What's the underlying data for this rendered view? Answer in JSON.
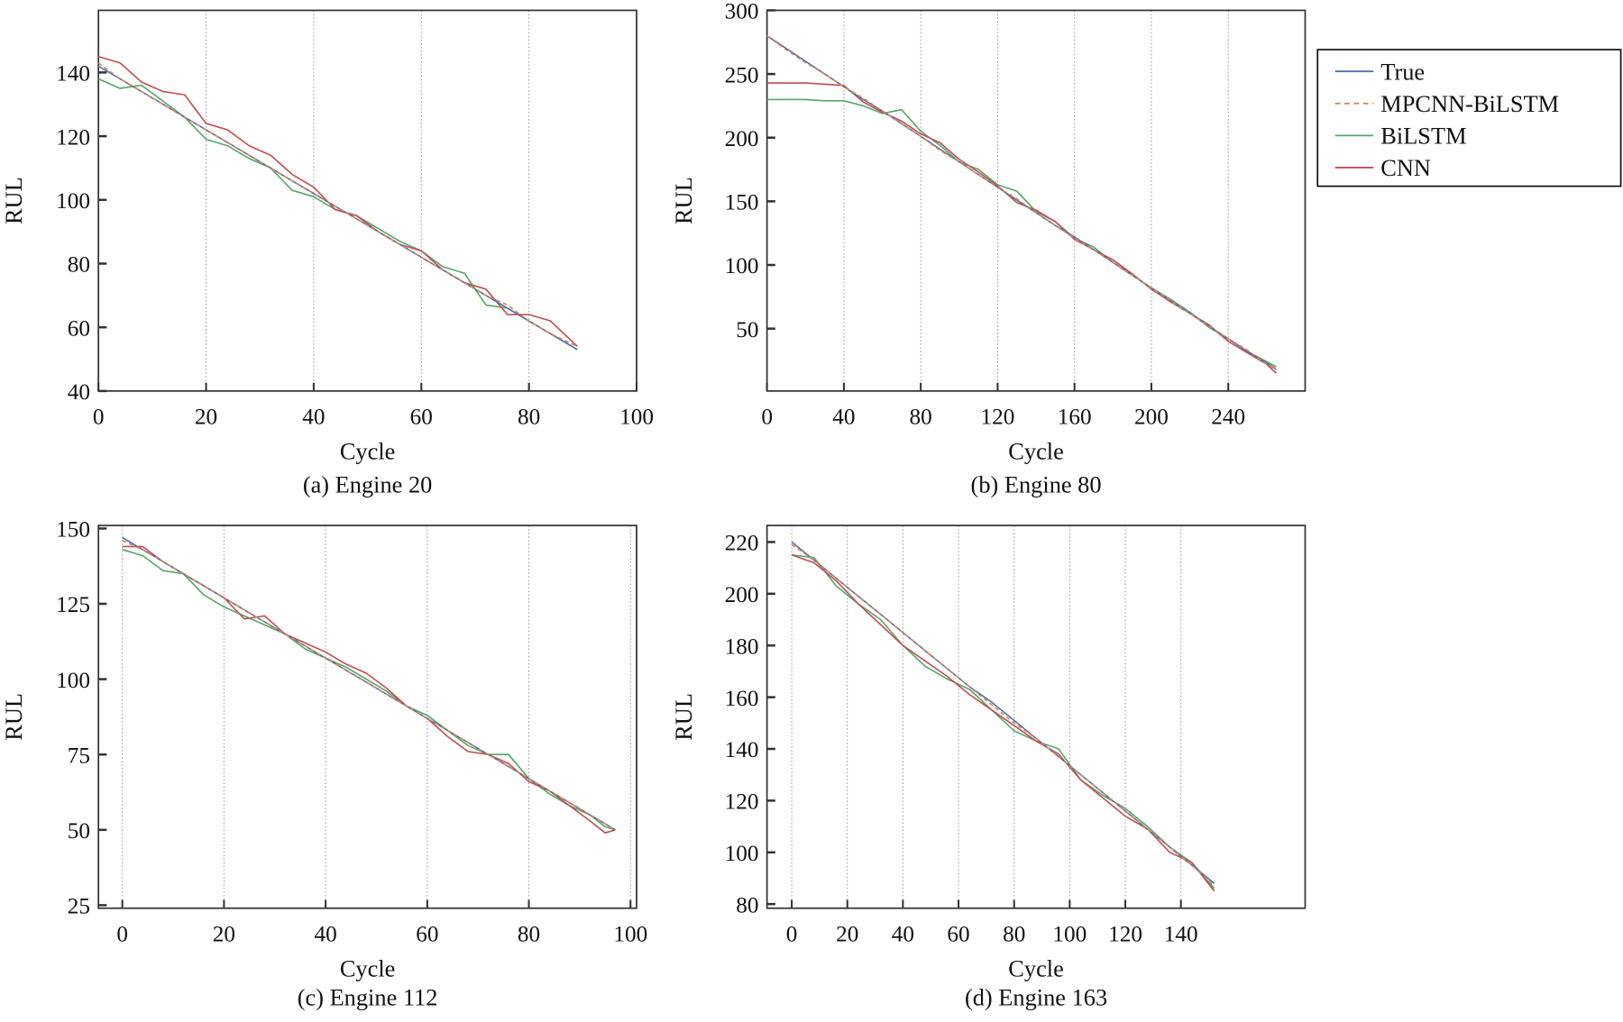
{
  "legend": {
    "entries": [
      {
        "label": "True",
        "color": "#4c72b0",
        "dash": false
      },
      {
        "label": "MPCNN-BiLSTM",
        "color": "#dd8452",
        "dash": true
      },
      {
        "label": "BiLSTM",
        "color": "#55a868",
        "dash": false
      },
      {
        "label": "CNN",
        "color": "#c44e52",
        "dash": false
      }
    ]
  },
  "chart_data": [
    {
      "type": "line",
      "caption": "(a) Engine 20",
      "xlabel": "Cycle",
      "ylabel": "RUL",
      "xlim": [
        0,
        100
      ],
      "ylim": [
        40,
        159.5
      ],
      "xticks": [
        0,
        20,
        40,
        60,
        80,
        100
      ],
      "yticks": [
        40,
        60,
        80,
        100,
        120,
        140
      ],
      "grid": "vertical-dotted",
      "x": [
        0,
        4,
        8,
        12,
        16,
        20,
        24,
        28,
        32,
        36,
        40,
        44,
        48,
        52,
        56,
        60,
        64,
        68,
        72,
        76,
        80,
        84,
        89
      ],
      "series": [
        {
          "name": "True",
          "values": [
            142,
            138,
            134,
            130,
            126,
            122,
            118,
            114,
            110,
            106,
            102,
            98,
            94,
            90,
            86,
            82,
            78,
            74,
            70,
            66,
            62,
            58,
            53
          ]
        },
        {
          "name": "MPCNN-BiLSTM",
          "values": [
            143,
            138,
            134,
            130,
            126,
            122,
            118,
            114,
            110,
            106,
            102,
            98,
            94,
            90,
            86,
            82,
            78,
            74,
            70,
            67,
            62,
            58,
            54
          ]
        },
        {
          "name": "BiLSTM",
          "values": [
            138,
            135,
            136,
            131,
            126,
            119,
            117,
            113,
            110,
            103,
            101,
            97,
            95,
            91,
            87,
            84,
            79,
            77,
            67,
            66,
            62,
            58,
            53
          ]
        },
        {
          "name": "CNN",
          "values": [
            145,
            143,
            137,
            134,
            133,
            124,
            122,
            117,
            114,
            108,
            104,
            97,
            95,
            90,
            86,
            84,
            78,
            74,
            72,
            64,
            64,
            62,
            54
          ]
        }
      ]
    },
    {
      "type": "line",
      "caption": "(b) Engine 80",
      "xlabel": "Cycle",
      "ylabel": "RUL",
      "xlim": [
        0,
        280
      ],
      "ylim": [
        1,
        300
      ],
      "xticks": [
        0,
        40,
        80,
        120,
        160,
        200,
        240
      ],
      "yticks": [
        50,
        100,
        150,
        200,
        250,
        300
      ],
      "grid": "vertical-dotted",
      "x": [
        0,
        10,
        20,
        30,
        40,
        50,
        60,
        70,
        80,
        90,
        100,
        110,
        120,
        130,
        140,
        150,
        160,
        170,
        180,
        190,
        200,
        210,
        220,
        230,
        240,
        250,
        260,
        265
      ],
      "series": [
        {
          "name": "True",
          "values": [
            280,
            270,
            260,
            250,
            240,
            230,
            221,
            211,
            201,
            191,
            181,
            171,
            161,
            151,
            141,
            131,
            122,
            112,
            102,
            92,
            82,
            72,
            62,
            52,
            42,
            32,
            23,
            18
          ]
        },
        {
          "name": "MPCNN-BiLSTM",
          "values": [
            280,
            269,
            259,
            250,
            240,
            231,
            221,
            211,
            201,
            190,
            181,
            171,
            161,
            152,
            141,
            131,
            121,
            112,
            102,
            92,
            82,
            72,
            62,
            52,
            42,
            33,
            22,
            18
          ]
        },
        {
          "name": "BiLSTM",
          "values": [
            230,
            230,
            230,
            229,
            229,
            225,
            219,
            222,
            205,
            194,
            181,
            175,
            163,
            158,
            142,
            134,
            121,
            114,
            102,
            92,
            82,
            73,
            63,
            51,
            42,
            32,
            24,
            20
          ]
        },
        {
          "name": "CNN",
          "values": [
            243,
            243,
            243,
            242,
            241,
            228,
            220,
            213,
            203,
            196,
            183,
            173,
            162,
            149,
            143,
            134,
            120,
            112,
            104,
            93,
            81,
            71,
            62,
            53,
            40,
            31,
            22,
            15
          ]
        }
      ]
    },
    {
      "type": "line",
      "caption": "(c) Engine 112",
      "xlabel": "Cycle",
      "ylabel": "RUL",
      "xlim": [
        -4.7,
        101.2
      ],
      "ylim": [
        24,
        151
      ],
      "xticks": [
        0,
        20,
        40,
        60,
        80,
        100
      ],
      "yticks": [
        25,
        50,
        75,
        100,
        125,
        150
      ],
      "grid": "vertical-dotted",
      "x": [
        0,
        4,
        8,
        12,
        16,
        20,
        24,
        28,
        32,
        36,
        40,
        44,
        48,
        52,
        56,
        60,
        64,
        68,
        72,
        76,
        80,
        84,
        88,
        92,
        95,
        97
      ],
      "series": [
        {
          "name": "True",
          "values": [
            147,
            143,
            139,
            135,
            131,
            127,
            123,
            119,
            115,
            111,
            107,
            103,
            99,
            95,
            91,
            87,
            83,
            79,
            75,
            71,
            67,
            63,
            59,
            55,
            52,
            50
          ]
        },
        {
          "name": "MPCNN-BiLSTM",
          "values": [
            146,
            143,
            139,
            135,
            131,
            127,
            123,
            119,
            115,
            111,
            107,
            103,
            99,
            95,
            91,
            87,
            83,
            79,
            75,
            71,
            67,
            63,
            59,
            55,
            52,
            50
          ]
        },
        {
          "name": "BiLSTM",
          "values": [
            143,
            141,
            136,
            135,
            128,
            124,
            121,
            118,
            115,
            110,
            107,
            104,
            100,
            96,
            91,
            88,
            83,
            78,
            75,
            75,
            67,
            62,
            58,
            55,
            51,
            50
          ]
        },
        {
          "name": "CNN",
          "values": [
            144,
            144,
            139,
            135,
            131,
            127,
            120,
            121,
            115,
            112,
            109,
            105,
            102,
            97,
            91,
            87,
            81,
            76,
            75,
            72,
            66,
            63,
            58,
            53,
            49,
            50
          ]
        }
      ]
    },
    {
      "type": "line",
      "caption": "(d) Engine 163",
      "xlabel": "Cycle",
      "ylabel": "RUL",
      "xlim": [
        -8.9,
        184.7
      ],
      "ylim": [
        78.4,
        226.4
      ],
      "xticks": [
        0,
        20,
        40,
        60,
        80,
        100,
        120,
        140
      ],
      "yticks": [
        80,
        100,
        120,
        140,
        160,
        180,
        200,
        220
      ],
      "grid": "vertical-dotted",
      "x": [
        0,
        8,
        16,
        24,
        32,
        40,
        48,
        56,
        64,
        72,
        80,
        88,
        96,
        104,
        112,
        120,
        128,
        136,
        144,
        152
      ],
      "series": [
        {
          "name": "True",
          "values": [
            220,
            213,
            206,
            199,
            192,
            185,
            178,
            171,
            164,
            158,
            151,
            144,
            137,
            130,
            123,
            116,
            109,
            102,
            95,
            88
          ]
        },
        {
          "name": "MPCNN-BiLSTM",
          "values": [
            219,
            213,
            206,
            199,
            192,
            185,
            178,
            171,
            164,
            157,
            150,
            144,
            137,
            130,
            123,
            116,
            109,
            102,
            95,
            87
          ]
        },
        {
          "name": "BiLSTM",
          "values": [
            215,
            214,
            203,
            196,
            190,
            180,
            172,
            167,
            163,
            155,
            147,
            143,
            140,
            128,
            122,
            117,
            110,
            102,
            96,
            86
          ]
        },
        {
          "name": "CNN",
          "values": [
            215,
            212,
            205,
            196,
            188,
            180,
            174,
            168,
            161,
            155,
            149,
            143,
            138,
            128,
            121,
            114,
            109,
            100,
            96,
            85
          ]
        }
      ]
    }
  ]
}
